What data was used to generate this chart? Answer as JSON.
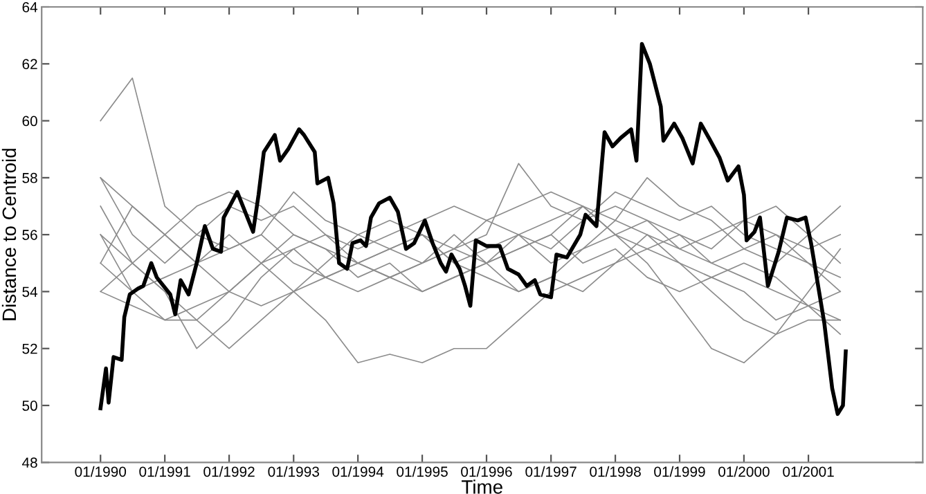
{
  "chart_data": {
    "type": "line",
    "xlabel": "Time",
    "ylabel": "Distance to Centroid",
    "xlim": [
      "1989-02-01",
      "2002-10-12"
    ],
    "ylim": [
      48,
      64
    ],
    "xticks": [
      {
        "value": "1990-01",
        "label": "01/1990"
      },
      {
        "value": "1991-01",
        "label": "01/1991"
      },
      {
        "value": "1992-01",
        "label": "01/1992"
      },
      {
        "value": "1993-01",
        "label": "01/1993"
      },
      {
        "value": "1994-01",
        "label": "01/1994"
      },
      {
        "value": "1995-01",
        "label": "01/1995"
      },
      {
        "value": "1996-01",
        "label": "01/1996"
      },
      {
        "value": "1997-01",
        "label": "01/1997"
      },
      {
        "value": "1998-01",
        "label": "01/1998"
      },
      {
        "value": "1999-01",
        "label": "01/1999"
      },
      {
        "value": "2000-01",
        "label": "01/2000"
      },
      {
        "value": "2001-01",
        "label": "01/2001"
      }
    ],
    "yticks": [
      48,
      50,
      52,
      54,
      56,
      58,
      60,
      62,
      64
    ],
    "x": [
      "1990-01",
      "1990-07",
      "1991-01",
      "1991-07",
      "1992-01",
      "1992-07",
      "1993-01",
      "1993-07",
      "1994-01",
      "1994-07",
      "1995-01",
      "1995-07",
      "1996-01",
      "1996-07",
      "1997-01",
      "1997-07",
      "1998-01",
      "1998-07",
      "1999-01",
      "1999-07",
      "2000-01",
      "2000-07",
      "2001-01",
      "2001-07"
    ],
    "series": [
      {
        "color": "#8c8c8c",
        "values": [
          60,
          61.5,
          57,
          56,
          55.5,
          56,
          55,
          54.5,
          55,
          55.5,
          56,
          55,
          55.5,
          56,
          56.5,
          57,
          56,
          55.5,
          56,
          55,
          55.5,
          56,
          55.5,
          56
        ]
      },
      {
        "color": "#8c8c8c",
        "values": [
          55,
          54,
          54.5,
          55,
          56,
          55,
          54,
          53,
          51.5,
          51.8,
          51.5,
          52,
          52,
          53,
          54,
          54.5,
          55,
          56,
          55.5,
          55,
          54.5,
          54,
          53.5,
          53
        ]
      },
      {
        "color": "#8c8c8c",
        "values": [
          56,
          55,
          54,
          53,
          52,
          53,
          54,
          55,
          56,
          55.5,
          55,
          55.5,
          56,
          58.5,
          57,
          56.5,
          57,
          56.5,
          56,
          55.5,
          56.5,
          56,
          55,
          54.5
        ]
      },
      {
        "color": "#8c8c8c",
        "values": [
          58,
          56,
          55,
          56,
          57,
          56.5,
          57,
          56,
          55.5,
          56,
          56.5,
          57,
          56.5,
          57,
          57.5,
          57,
          56,
          55,
          53.5,
          52,
          51.5,
          52.5,
          53,
          53
        ]
      },
      {
        "color": "#8c8c8c",
        "values": [
          54,
          55,
          54,
          52,
          53,
          54.5,
          55.5,
          56,
          55,
          54.5,
          54,
          54.5,
          55,
          55.5,
          56,
          55,
          55.5,
          54.5,
          54,
          54.5,
          55,
          54.5,
          53.5,
          52.5
        ]
      },
      {
        "color": "#8c8c8c",
        "values": [
          55,
          57,
          56,
          55,
          54,
          53.5,
          54,
          54.5,
          55,
          55.5,
          56,
          55.5,
          55,
          56,
          55.5,
          56.5,
          57.5,
          57,
          56.5,
          57,
          56,
          55.5,
          55,
          54
        ]
      },
      {
        "color": "#8c8c8c",
        "values": [
          58,
          57,
          56,
          57,
          57.5,
          57,
          56,
          55.5,
          54.5,
          55,
          54,
          54.5,
          55,
          55.5,
          56,
          57,
          56.5,
          56,
          55,
          54.5,
          54,
          53,
          53.5,
          54
        ]
      },
      {
        "color": "#8c8c8c",
        "values": [
          54,
          53.5,
          53,
          53,
          54,
          55,
          56,
          55.5,
          55,
          54.5,
          55,
          55.5,
          56.5,
          56,
          55,
          55.5,
          56.5,
          58,
          57,
          56.5,
          55.5,
          55,
          56,
          57
        ]
      },
      {
        "color": "#8c8c8c",
        "values": [
          57,
          55,
          56,
          55,
          55.5,
          56,
          57.5,
          56.5,
          56,
          56.5,
          56,
          55,
          54.5,
          54,
          54.5,
          54,
          55,
          55.5,
          55,
          54,
          53,
          52.5,
          54,
          55.5
        ]
      },
      {
        "color": "#8c8c8c",
        "values": [
          56,
          54,
          53,
          53.5,
          54,
          55,
          55.5,
          54.5,
          54,
          54.5,
          55,
          56,
          55,
          54,
          54.5,
          55.5,
          56,
          56.5,
          55.5,
          56,
          56.5,
          57,
          56,
          55
        ]
      },
      {
        "color": "#000000",
        "x": [
          "1990-01-01",
          "1990-02-01",
          "1990-02-16",
          "1990-03-16",
          "1990-05-01",
          "1990-05-16",
          "1990-06-16",
          "1990-08-01",
          "1990-09-01",
          "1990-10-16",
          "1990-11-16",
          "1991-02-01",
          "1991-03-01",
          "1991-04-01",
          "1991-05-16",
          "1991-07-01",
          "1991-08-16",
          "1991-10-01",
          "1991-11-16",
          "1991-12-01",
          "1992-02-16",
          "1992-05-16",
          "1992-06-16",
          "1992-07-16",
          "1992-09-16",
          "1992-10-16",
          "1992-12-01",
          "1993-02-01",
          "1993-03-01",
          "1993-05-01",
          "1993-05-16",
          "1993-07-16",
          "1993-08-16",
          "1993-09-16",
          "1993-11-01",
          "1993-12-01",
          "1994-01-16",
          "1994-02-16",
          "1994-03-16",
          "1994-05-01",
          "1994-07-01",
          "1994-08-16",
          "1994-10-01",
          "1994-11-16",
          "1995-01-16",
          "1995-03-01",
          "1995-04-16",
          "1995-05-16",
          "1995-06-16",
          "1995-08-01",
          "1995-09-01",
          "1995-10-01",
          "1995-11-01",
          "1996-01-01",
          "1996-03-16",
          "1996-05-01",
          "1996-07-01",
          "1996-08-16",
          "1996-10-01",
          "1996-11-01",
          "1997-01-01",
          "1997-02-01",
          "1997-04-01",
          "1997-06-16",
          "1997-07-16",
          "1997-09-16",
          "1997-11-01",
          "1997-12-16",
          "1998-02-01",
          "1998-04-01",
          "1998-05-01",
          "1998-06-01",
          "1998-07-16",
          "1998-09-16",
          "1998-10-01",
          "1998-12-01",
          "1999-01-16",
          "1999-03-16",
          "1999-05-01",
          "1999-06-16",
          "1999-08-16",
          "1999-10-01",
          "1999-12-01",
          "2000-01-01",
          "2000-01-16",
          "2000-03-01",
          "2000-04-01",
          "2000-05-16",
          "2000-07-16",
          "2000-09-01",
          "2000-11-01",
          "2000-12-16",
          "2001-01-16",
          "2001-04-01",
          "2001-05-16",
          "2001-06-16",
          "2001-07-16",
          "2001-08-01"
        ],
        "values": [
          49.9,
          51.3,
          50.1,
          51.7,
          51.6,
          53.1,
          53.9,
          54.1,
          54.2,
          55.0,
          54.5,
          53.9,
          53.2,
          54.4,
          53.9,
          55.0,
          56.3,
          55.5,
          55.4,
          56.6,
          57.5,
          56.1,
          57.4,
          58.9,
          59.5,
          58.6,
          59.0,
          59.7,
          59.5,
          58.9,
          57.8,
          58.0,
          57.1,
          55.0,
          54.8,
          55.7,
          55.8,
          55.6,
          56.6,
          57.1,
          57.3,
          56.8,
          55.5,
          55.7,
          56.5,
          55.7,
          55.0,
          54.7,
          55.3,
          54.8,
          54.2,
          53.5,
          55.8,
          55.6,
          55.6,
          54.8,
          54.6,
          54.2,
          54.4,
          53.9,
          53.8,
          55.3,
          55.2,
          56.0,
          56.7,
          56.3,
          59.6,
          59.1,
          59.4,
          59.7,
          58.6,
          62.7,
          62.0,
          60.5,
          59.3,
          59.9,
          59.4,
          58.5,
          59.9,
          59.4,
          58.7,
          57.9,
          58.4,
          57.4,
          55.8,
          56.1,
          56.6,
          54.2,
          55.4,
          56.6,
          56.5,
          56.6,
          55.7,
          52.9,
          50.6,
          49.7,
          50.0,
          51.9
        ]
      }
    ]
  }
}
